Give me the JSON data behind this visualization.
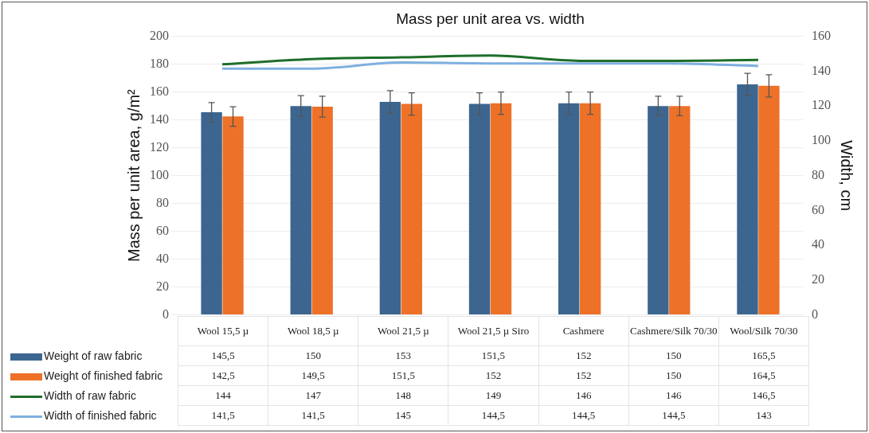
{
  "chart_data": {
    "type": "bar",
    "title": "Mass per unit area vs. width",
    "ylabel": "Mass per unit area, g/m²",
    "y2label": "Width, cm",
    "categories": [
      "Wool 15,5 µ",
      "Wool 18,5 µ",
      "Wool 21,5 µ",
      "Wool 21,5 µ Siro",
      "Cashmere",
      "Cashmere/Silk 70/30",
      "Wool/Silk 70/30"
    ],
    "series": [
      {
        "name": "Weight of raw fabric",
        "color": "#3c6690",
        "values": [
          145.5,
          150,
          153,
          151.5,
          152,
          150,
          165.5
        ],
        "errors": [
          7,
          7.5,
          8,
          8,
          8,
          7,
          8
        ],
        "value_labels": [
          "145,5",
          "150",
          "153",
          "151,5",
          "152",
          "150",
          "165,5"
        ]
      },
      {
        "name": "Weight of finished fabric",
        "color": "#ee7128",
        "values": [
          142.5,
          149.5,
          151.5,
          152,
          152,
          150,
          164.5
        ],
        "errors": [
          7,
          7.5,
          8,
          8,
          8,
          7,
          8
        ],
        "value_labels": [
          "142,5",
          "149,5",
          "151,5",
          "152",
          "152",
          "150",
          "164,5"
        ]
      },
      {
        "name": "Width of raw fabric",
        "type": "line",
        "axis": "y2",
        "color": "#1e6e2a",
        "values": [
          144,
          147,
          148,
          149,
          146,
          146,
          146.5
        ],
        "value_labels": [
          "144",
          "147",
          "148",
          "149",
          "146",
          "146",
          "146,5"
        ]
      },
      {
        "name": "Width of finished fabric",
        "type": "line",
        "axis": "y2",
        "color": "#7fb0e0",
        "values": [
          141.5,
          141.5,
          145,
          144.5,
          144.5,
          144.5,
          143
        ],
        "value_labels": [
          "141,5",
          "141,5",
          "145",
          "144,5",
          "144,5",
          "144,5",
          "143"
        ]
      }
    ],
    "ylim": [
      0,
      200
    ],
    "yticks": [
      0,
      20,
      40,
      60,
      80,
      100,
      120,
      140,
      160,
      180,
      200
    ],
    "y2lim": [
      0,
      160
    ],
    "y2ticks": [
      0,
      20,
      40,
      60,
      80,
      100,
      120,
      140,
      160
    ],
    "grid": "y",
    "legend": "bottom",
    "marker": "none"
  }
}
